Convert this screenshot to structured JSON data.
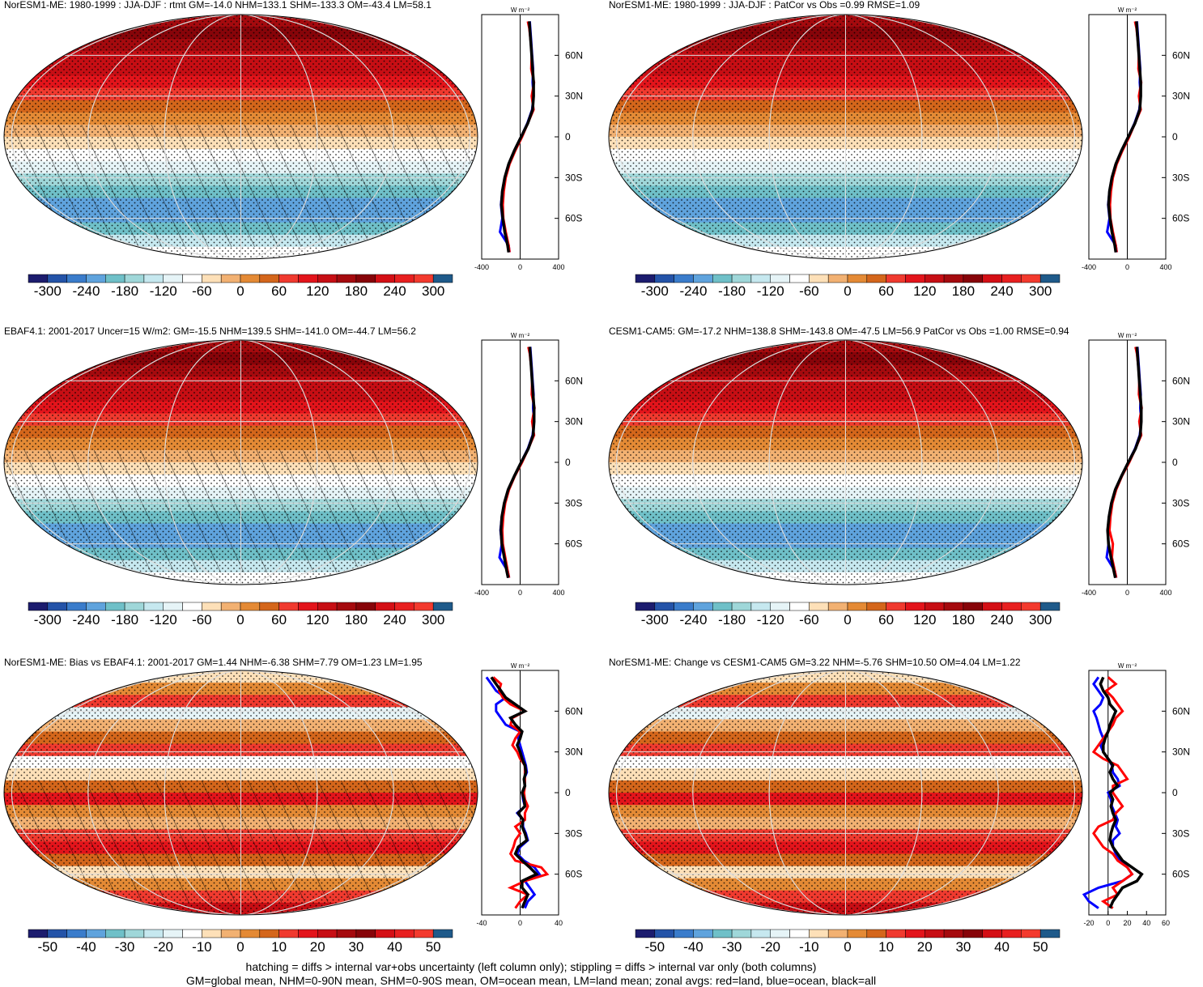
{
  "figure": {
    "footnote_line1": "hatching = diffs > internal var+obs uncertainty (left column only); stippling = diffs > internal var only (both columns)",
    "footnote_line2": "GM=global mean, NHM=0-90N mean, SHM=0-90S mean, OM=ocean mean, LM=land mean; zonal avgs: red=land, blue=ocean, black=all"
  },
  "colors": {
    "scale": [
      "#1c1c6e",
      "#2453a8",
      "#3a7ccb",
      "#5fa3dd",
      "#6fc0c8",
      "#9fd7d9",
      "#c6e8ef",
      "#e6f4f7",
      "#ffffff",
      "#fde0b8",
      "#f2b172",
      "#e48a35",
      "#d4661b",
      "#f03a2f",
      "#e3141b",
      "#c70e14",
      "#a50a0e",
      "#870409",
      "#d40f15",
      "#e82020",
      "#f33a2e",
      "#1f5a8a"
    ],
    "land": "#ff0000",
    "ocean": "#0000ff",
    "all": "#000000",
    "grid": "#dddddd"
  },
  "colorbar_labels_abs": [
    "-300",
    "-240",
    "-180",
    "-120",
    "-60",
    "0",
    "60",
    "120",
    "180",
    "240",
    "300"
  ],
  "colorbar_labels_diff": [
    "-50",
    "-40",
    "-30",
    "-20",
    "-10",
    "0",
    "10",
    "20",
    "30",
    "40",
    "50"
  ],
  "lat_labels": [
    "60N",
    "30N",
    "0",
    "30S",
    "60S"
  ],
  "lat_values": [
    60,
    30,
    0,
    -30,
    -60
  ],
  "zonal_units": "W m⁻²",
  "chart_data": [
    {
      "type": "heatmap",
      "title": "NorESM1-ME: 1980-1999 : JJA-DJF : rtmt GM=-14.0 NHM=133.1 SHM=-133.3 OM=-43.4 LM=58.1",
      "zonal": {
        "xlim": [
          -400,
          400
        ],
        "xticks": [
          "-400",
          "0",
          "400"
        ],
        "mode": "abs",
        "lat": [
          85,
          80,
          70,
          60,
          50,
          40,
          30,
          20,
          10,
          0,
          -10,
          -20,
          -30,
          -40,
          -50,
          -60,
          -70,
          -80,
          -85
        ],
        "all": [
          95,
          100,
          110,
          120,
          130,
          140,
          140,
          130,
          80,
          10,
          -60,
          -120,
          -160,
          -185,
          -195,
          -180,
          -160,
          -130,
          -120
        ],
        "land": [
          80,
          95,
          110,
          120,
          115,
          145,
          120,
          140,
          80,
          20,
          -50,
          -110,
          -150,
          -170,
          -180,
          -175,
          -150,
          -120,
          -110
        ],
        "ocean": [
          100,
          105,
          115,
          125,
          135,
          130,
          140,
          125,
          75,
          10,
          -60,
          -120,
          -160,
          -185,
          -200,
          -185,
          -210,
          -120,
          -110
        ]
      }
    },
    {
      "type": "heatmap",
      "title": "NorESM1-ME: 1980-1999 : JJA-DJF : PatCor vs Obs =0.99 RMSE=1.09",
      "zonal": {
        "xlim": [
          -400,
          400
        ],
        "xticks": [
          "-400",
          "0",
          "400"
        ],
        "mode": "abs",
        "lat": [
          85,
          80,
          70,
          60,
          50,
          40,
          30,
          20,
          10,
          0,
          -10,
          -20,
          -30,
          -40,
          -50,
          -60,
          -70,
          -80,
          -85
        ],
        "all": [
          95,
          100,
          110,
          120,
          130,
          140,
          140,
          130,
          80,
          10,
          -60,
          -120,
          -160,
          -185,
          -195,
          -180,
          -160,
          -130,
          -120
        ],
        "land": [
          80,
          95,
          110,
          120,
          115,
          145,
          120,
          140,
          80,
          20,
          -50,
          -110,
          -150,
          -170,
          -180,
          -175,
          -150,
          -120,
          -110
        ],
        "ocean": [
          100,
          105,
          115,
          125,
          135,
          130,
          140,
          125,
          75,
          10,
          -60,
          -120,
          -160,
          -185,
          -200,
          -185,
          -210,
          -120,
          -110
        ]
      }
    },
    {
      "type": "heatmap",
      "title": "EBAF4.1: 2001-2017 Uncer=15 W/m2: GM=-15.5 NHM=139.5 SHM=-141.0 OM=-44.7 LM=56.2",
      "zonal": {
        "xlim": [
          -400,
          400
        ],
        "xticks": [
          "-400",
          "0",
          "400"
        ],
        "mode": "abs",
        "lat": [
          85,
          80,
          70,
          60,
          50,
          40,
          30,
          20,
          10,
          0,
          -10,
          -20,
          -30,
          -40,
          -50,
          -60,
          -70,
          -80,
          -85
        ],
        "all": [
          100,
          105,
          115,
          125,
          135,
          145,
          145,
          135,
          85,
          10,
          -60,
          -125,
          -165,
          -190,
          -200,
          -190,
          -165,
          -140,
          -125
        ],
        "land": [
          85,
          100,
          115,
          125,
          120,
          150,
          125,
          145,
          85,
          20,
          -55,
          -115,
          -155,
          -175,
          -185,
          -180,
          -155,
          -130,
          -115
        ],
        "ocean": [
          105,
          110,
          120,
          130,
          140,
          135,
          145,
          130,
          80,
          10,
          -60,
          -125,
          -165,
          -190,
          -205,
          -190,
          -215,
          -130,
          -115
        ]
      }
    },
    {
      "type": "heatmap",
      "title": "CESM1-CAM5: GM=-17.2 NHM=138.8 SHM=-143.8 OM=-47.5 LM=56.9 PatCor vs Obs =1.00 RMSE=0.94",
      "zonal": {
        "xlim": [
          -400,
          400
        ],
        "xticks": [
          "-400",
          "0",
          "400"
        ],
        "mode": "abs",
        "lat": [
          85,
          80,
          70,
          60,
          50,
          40,
          30,
          20,
          10,
          0,
          -10,
          -20,
          -30,
          -40,
          -50,
          -60,
          -70,
          -80,
          -85
        ],
        "all": [
          100,
          105,
          115,
          125,
          135,
          145,
          145,
          135,
          85,
          10,
          -60,
          -125,
          -165,
          -190,
          -205,
          -195,
          -170,
          -140,
          -125
        ],
        "land": [
          85,
          100,
          115,
          125,
          120,
          150,
          125,
          145,
          85,
          20,
          -55,
          -115,
          -155,
          -175,
          -185,
          -150,
          -160,
          -130,
          -115
        ],
        "ocean": [
          105,
          110,
          120,
          130,
          140,
          135,
          145,
          130,
          80,
          10,
          -60,
          -125,
          -165,
          -190,
          -205,
          -195,
          -215,
          -130,
          -115
        ]
      }
    },
    {
      "type": "heatmap",
      "title": "NorESM1-ME: Bias vs EBAF4.1: 2001-2017 GM=1.44 NHM=-6.38 SHM=7.79 OM=1.23 LM=1.95",
      "zonal": {
        "xlim": [
          -40,
          40
        ],
        "xticks": [
          "-40",
          "0",
          "40"
        ],
        "mode": "diff",
        "lat": [
          85,
          80,
          75,
          70,
          65,
          60,
          55,
          50,
          45,
          40,
          35,
          30,
          25,
          20,
          15,
          10,
          5,
          0,
          -5,
          -10,
          -15,
          -20,
          -25,
          -30,
          -35,
          -40,
          -45,
          -50,
          -55,
          -60,
          -65,
          -70,
          -75,
          -80,
          -85
        ],
        "all": [
          -30,
          -25,
          -20,
          -15,
          -5,
          5,
          -10,
          -5,
          2,
          0,
          -3,
          0,
          2,
          5,
          6,
          4,
          5,
          2,
          4,
          5,
          -2,
          3,
          2,
          5,
          7,
          -2,
          -5,
          2,
          10,
          17,
          2,
          2,
          8,
          5,
          2
        ],
        "land": [
          -28,
          -20,
          -22,
          -18,
          -10,
          5,
          -8,
          -10,
          0,
          -5,
          -8,
          -3,
          0,
          5,
          5,
          5,
          5,
          4,
          5,
          8,
          5,
          5,
          -5,
          0,
          -5,
          -7,
          -10,
          -5,
          22,
          28,
          5,
          -10,
          8,
          0,
          -5
        ],
        "ocean": [
          -35,
          -30,
          -25,
          -15,
          -25,
          -25,
          -20,
          -15,
          0,
          -2,
          0,
          2,
          4,
          6,
          7,
          4,
          5,
          2,
          3,
          5,
          -3,
          3,
          3,
          6,
          8,
          0,
          -3,
          4,
          15,
          20,
          5,
          10,
          15,
          8,
          5
        ]
      }
    },
    {
      "type": "heatmap",
      "title": "NorESM1-ME: Change vs CESM1-CAM5 GM=3.22 NHM=-5.76 SHM=10.50 OM=4.04 LM=1.22",
      "zonal": {
        "xlim": [
          -20,
          60
        ],
        "xticks": [
          "-20",
          "0",
          "20",
          "40",
          "60"
        ],
        "mode": "diff",
        "lat": [
          85,
          80,
          75,
          70,
          65,
          60,
          55,
          50,
          45,
          40,
          35,
          30,
          25,
          20,
          15,
          10,
          5,
          0,
          -5,
          -10,
          -15,
          -20,
          -25,
          -30,
          -35,
          -40,
          -45,
          -50,
          -55,
          -60,
          -65,
          -70,
          -75,
          -80,
          -85
        ],
        "all": [
          -5,
          -8,
          -5,
          0,
          2,
          8,
          5,
          2,
          0,
          -3,
          -5,
          -5,
          0,
          5,
          2,
          5,
          10,
          2,
          5,
          3,
          5,
          8,
          5,
          3,
          2,
          5,
          10,
          15,
          25,
          35,
          30,
          15,
          10,
          5,
          2
        ],
        "land": [
          0,
          8,
          -2,
          5,
          10,
          15,
          8,
          5,
          0,
          -5,
          -10,
          -15,
          -5,
          10,
          15,
          20,
          5,
          5,
          10,
          15,
          8,
          5,
          -10,
          -15,
          -10,
          -5,
          5,
          10,
          20,
          25,
          15,
          5,
          10,
          -5,
          5
        ],
        "ocean": [
          -10,
          -15,
          -10,
          -5,
          -8,
          -15,
          -12,
          -10,
          -8,
          -5,
          -8,
          -5,
          0,
          4,
          5,
          10,
          12,
          0,
          3,
          4,
          7,
          10,
          8,
          12,
          5,
          5,
          8,
          12,
          20,
          25,
          15,
          -10,
          -25,
          -20,
          -10
        ]
      }
    }
  ]
}
